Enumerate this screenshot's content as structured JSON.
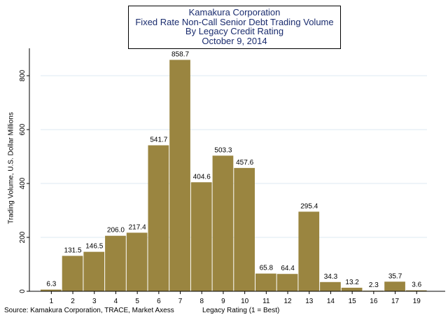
{
  "chart_data": {
    "type": "bar",
    "title_lines": [
      "Kamakura Corporation",
      "Fixed Rate Non-Call Senior Debt Trading Volume",
      "By Legacy Credit Rating",
      "October 9, 2014"
    ],
    "xlabel": "Legacy Rating (1 = Best)",
    "ylabel": "Trading Volume, U.S. Dollar Millions",
    "categories": [
      "1",
      "2",
      "3",
      "4",
      "5",
      "6",
      "7",
      "8",
      "9",
      "10",
      "11",
      "12",
      "13",
      "14",
      "15",
      "16",
      "17",
      "19"
    ],
    "values": [
      6.3,
      131.5,
      146.5,
      206.0,
      217.4,
      541.7,
      858.7,
      404.6,
      503.3,
      457.6,
      65.8,
      64.4,
      295.4,
      34.3,
      13.2,
      2.3,
      35.7,
      3.6
    ],
    "value_labels": [
      "6.3",
      "131.5",
      "146.5",
      "206.0",
      "217.4",
      "541.7",
      "858.7",
      "404.6",
      "503.3",
      "457.6",
      "65.8",
      "64.4",
      "295.4",
      "34.3",
      "13.2",
      "2.3",
      "35.7",
      "3.6"
    ],
    "y_ticks": [
      0,
      200,
      400,
      600,
      800
    ],
    "y_tick_labels": [
      "0",
      "200",
      "400",
      "600",
      "800"
    ],
    "ylim": [
      0,
      880
    ],
    "grid": true,
    "bar_color": "#9a8540",
    "grid_color": "#dce9f2",
    "source": "Source: Kamakura Corporation, TRACE, Market Axess"
  }
}
